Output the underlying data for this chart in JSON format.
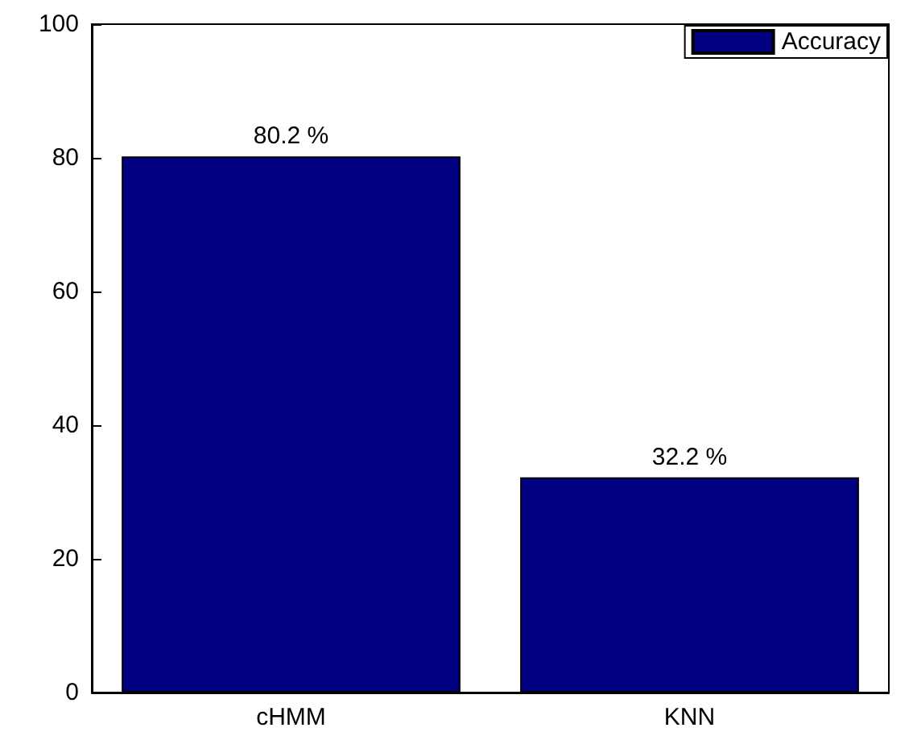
{
  "chart_data": {
    "type": "bar",
    "categories": [
      "cHMM",
      "KNN"
    ],
    "series": [
      {
        "name": "Accuracy",
        "color": "#000080",
        "values": [
          80.2,
          32.2
        ],
        "value_labels": [
          "80.2 %",
          "32.2 %"
        ]
      }
    ],
    "ylim": [
      0,
      100
    ],
    "yticks": [
      0,
      20,
      40,
      60,
      80,
      100
    ],
    "grid": false,
    "legend": "top right"
  }
}
